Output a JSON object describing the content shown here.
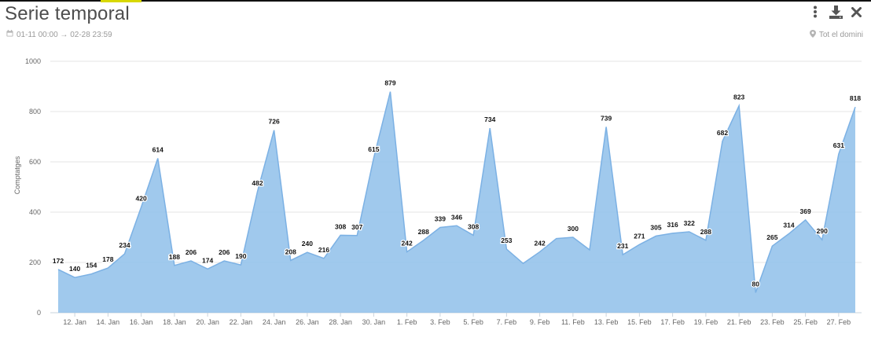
{
  "header": {
    "title": "Serie temporal",
    "date_range": "01-11 00:00 → 02-28 23:59",
    "scope": "Tot el domini",
    "icons": [
      "calendar-icon",
      "pin-icon",
      "more-vertical-icon",
      "download-icon",
      "close-icon"
    ]
  },
  "chart_data": {
    "type": "area",
    "title": "Serie temporal",
    "ylabel": "Comptatges",
    "xlabel": "",
    "ylim": [
      0,
      1000
    ],
    "y_ticks": [
      0,
      200,
      400,
      600,
      800,
      1000
    ],
    "x_tick_labels": [
      "12. Jan",
      "14. Jan",
      "16. Jan",
      "18. Jan",
      "20. Jan",
      "22. Jan",
      "24. Jan",
      "26. Jan",
      "28. Jan",
      "30. Jan",
      "1. Feb",
      "3. Feb",
      "5. Feb",
      "7. Feb",
      "9. Feb",
      "11. Feb",
      "13. Feb",
      "15. Feb",
      "17. Feb",
      "19. Feb",
      "21. Feb",
      "23. Feb",
      "25. Feb",
      "27. Feb"
    ],
    "grid": true,
    "series": [
      {
        "name": "",
        "color": "#8fbfea",
        "stroke": "#7cb1e4",
        "x": [
          "2024-01-11",
          "2024-01-12",
          "2024-01-13",
          "2024-01-14",
          "2024-01-15",
          "2024-01-16",
          "2024-01-17",
          "2024-01-18",
          "2024-01-19",
          "2024-01-20",
          "2024-01-21",
          "2024-01-22",
          "2024-01-23",
          "2024-01-24",
          "2024-01-25",
          "2024-01-26",
          "2024-01-27",
          "2024-01-28",
          "2024-01-29",
          "2024-01-30",
          "2024-01-31",
          "2024-02-01",
          "2024-02-02",
          "2024-02-03",
          "2024-02-04",
          "2024-02-05",
          "2024-02-06",
          "2024-02-07",
          "2024-02-08",
          "2024-02-09",
          "2024-02-10",
          "2024-02-11",
          "2024-02-12",
          "2024-02-13",
          "2024-02-14",
          "2024-02-15",
          "2024-02-16",
          "2024-02-17",
          "2024-02-18",
          "2024-02-19",
          "2024-02-20",
          "2024-02-21",
          "2024-02-22",
          "2024-02-23",
          "2024-02-24",
          "2024-02-25",
          "2024-02-26",
          "2024-02-27",
          "2024-02-28"
        ],
        "values": [
          172,
          140,
          154,
          178,
          234,
          420,
          614,
          188,
          206,
          174,
          206,
          190,
          482,
          726,
          208,
          240,
          216,
          308,
          307,
          615,
          879,
          242,
          288,
          339,
          346,
          308,
          734,
          253,
          196,
          242,
          295,
          300,
          250,
          739,
          231,
          271,
          305,
          316,
          322,
          288,
          682,
          823,
          80,
          265,
          314,
          369,
          290,
          631,
          818
        ],
        "labels": [
          "172",
          "140",
          "154",
          "178",
          "234",
          "420",
          "614",
          "188",
          "206",
          "174",
          "206",
          "190",
          "482",
          "726",
          "208",
          "240",
          "216",
          "308",
          "307",
          "615",
          "879",
          "242",
          "288",
          "339",
          "346",
          "308",
          "734",
          "253",
          "",
          "242",
          "",
          "300",
          "",
          "739",
          "231",
          "271",
          "305",
          "316",
          "322",
          "288",
          "682",
          "823",
          "80",
          "265",
          "314",
          "369",
          "290",
          "631",
          "818"
        ]
      }
    ]
  }
}
